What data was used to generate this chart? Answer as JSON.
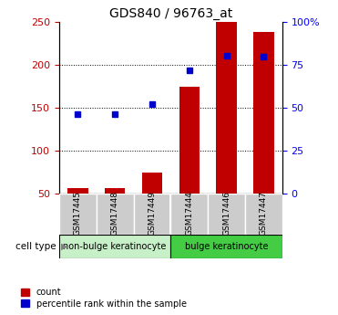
{
  "title": "GDS840 / 96763_at",
  "samples": [
    "GSM17445",
    "GSM17448",
    "GSM17449",
    "GSM17444",
    "GSM17446",
    "GSM17447"
  ],
  "counts": [
    57,
    57,
    75,
    175,
    250,
    238
  ],
  "percentile_ranks": [
    143,
    143,
    154,
    194,
    211,
    210
  ],
  "bar_color": "#C00000",
  "dot_color": "#0000CC",
  "left_ylim": [
    50,
    250
  ],
  "left_yticks": [
    50,
    100,
    150,
    200,
    250
  ],
  "right_ylim": [
    0,
    100
  ],
  "right_yticks": [
    0,
    25,
    50,
    75,
    100
  ],
  "right_yticklabels": [
    "0",
    "25",
    "50",
    "75",
    "100%"
  ],
  "background_color": "#ffffff",
  "left_tick_color": "#C00000",
  "right_tick_color": "#0000FF",
  "tick_label_bg": "#cccccc",
  "nonbulge_color": "#c8f0c8",
  "bulge_color": "#44cc44",
  "grid_ticks": [
    100,
    150,
    200
  ],
  "nonbulge_label": "non-bulge keratinocyte",
  "bulge_label": "bulge keratinocyte",
  "cell_type_label": "cell type",
  "legend_count": "count",
  "legend_percentile": "percentile rank within the sample"
}
